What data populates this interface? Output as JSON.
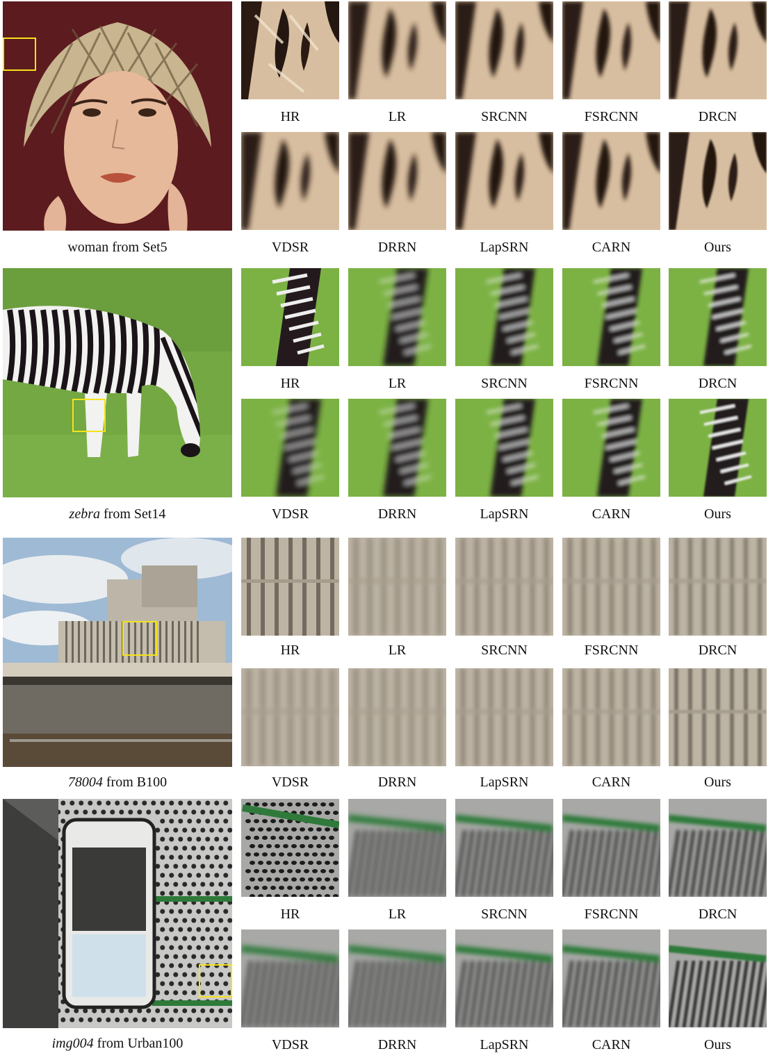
{
  "figure": {
    "method_labels_row1": [
      "HR",
      "LR",
      "SRCNN",
      "FSRCNN",
      "DRCN"
    ],
    "method_labels_row2": [
      "VDSR",
      "DRRN",
      "LapSRN",
      "CARN",
      "Ours"
    ],
    "examples": [
      {
        "id": "woman",
        "caption_name": "woman",
        "caption_name_italic": false,
        "caption_suffix": " from Set5",
        "theme": "woman",
        "colors": {
          "accent": "#c7b89a",
          "shadow": "#3a2418",
          "bg": "#5a1a1a"
        }
      },
      {
        "id": "zebra",
        "caption_name": "zebra",
        "caption_name_italic": true,
        "caption_suffix": " from Set14",
        "theme": "zebra",
        "colors": {
          "accent": "#6aa53a",
          "shadow": "#1a1418",
          "bg": "#7ab046"
        }
      },
      {
        "id": "78004",
        "caption_name": "78004",
        "caption_name_italic": true,
        "caption_suffix": " from B100",
        "theme": "building",
        "colors": {
          "accent": "#b9b2a3",
          "shadow": "#5a5448",
          "bg": "#a9c2db"
        }
      },
      {
        "id": "img004",
        "caption_name": "img004",
        "caption_name_italic": true,
        "caption_suffix": " from Urban100",
        "theme": "urban",
        "colors": {
          "accent": "#2f7a3a",
          "shadow": "#2a2a2a",
          "bg": "#9a9a9a"
        }
      }
    ],
    "zoom_box_color": "#f4e31b"
  }
}
